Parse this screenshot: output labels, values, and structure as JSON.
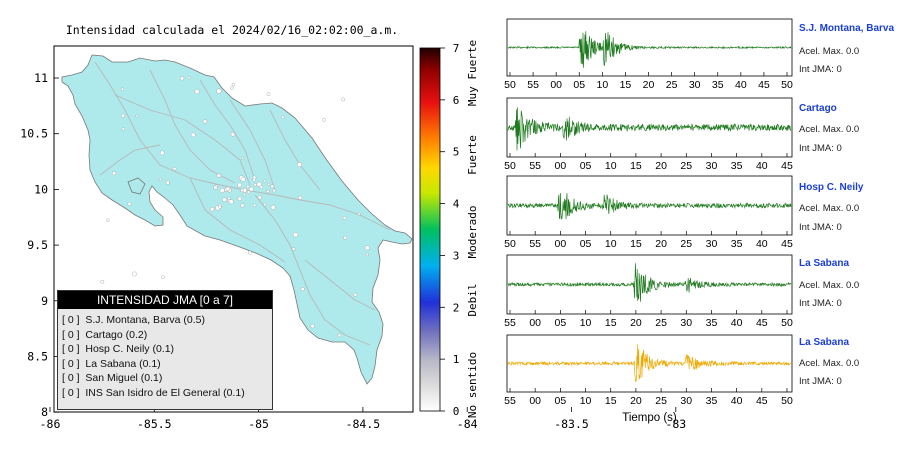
{
  "title": "Intensidad calculada el 2024/02/16_02:02:00_a.m.",
  "map": {
    "lon_ticks": [
      "-86",
      "-85.5",
      "-85",
      "-84.5",
      "-84",
      "-83.5",
      "-83"
    ],
    "lat_ticks": [
      "11",
      "10.5",
      "10",
      "9.5",
      "9",
      "8.5",
      "8"
    ],
    "land_color": "#aee9ec",
    "road_color": "#b8b8b8",
    "legend": {
      "header": "INTENSIDAD JMA [0 a 7]",
      "items": [
        {
          "value": "[ 0 ]",
          "label": "S.J. Montana, Barva (0.5)"
        },
        {
          "value": "[ 0 ]",
          "label": "Cartago (0.2)"
        },
        {
          "value": "[ 0 ]",
          "label": "Hosp C. Neily (0.1)"
        },
        {
          "value": "[ 0 ]",
          "label": "La Sabana (0.1)"
        },
        {
          "value": "[ 0 ]",
          "label": "San Miguel (0.1)"
        },
        {
          "value": "[ 0 ]",
          "label": "INS San Isidro de El General (0.1)"
        }
      ]
    }
  },
  "colorbar": {
    "ticks": [
      "0",
      "1",
      "2",
      "3",
      "4",
      "5",
      "6",
      "7"
    ],
    "categories": [
      "No sentido",
      "Debil",
      "Moderado",
      "Fuerte",
      "Muy Fuerte"
    ]
  },
  "chart_data": [
    {
      "type": "line",
      "name": "S.J. Montana, Barva",
      "color": "#1f7a1f",
      "x_ticks": [
        "50",
        "55",
        "00",
        "05",
        "10",
        "15",
        "20",
        "25",
        "30",
        "35",
        "40",
        "45",
        "50"
      ],
      "bursts": [
        {
          "t": 15.5,
          "amp": 1.0
        },
        {
          "t": 20.5,
          "amp": 0.7
        }
      ],
      "noise": 0.03
    },
    {
      "type": "line",
      "name": "Cartago",
      "color": "#1f7a1f",
      "x_ticks": [
        "50",
        "55",
        "00",
        "05",
        "10",
        "15",
        "20",
        "25",
        "30",
        "35",
        "40",
        "45"
      ],
      "bursts": [
        {
          "t": 2.0,
          "amp": 0.9
        },
        {
          "t": 12.0,
          "amp": 0.5
        }
      ],
      "noise": 0.12
    },
    {
      "type": "line",
      "name": "Hosp C. Neily",
      "color": "#1f7a1f",
      "x_ticks": [
        "50",
        "55",
        "00",
        "05",
        "10",
        "15",
        "20",
        "25",
        "30",
        "35",
        "40",
        "45"
      ],
      "bursts": [
        {
          "t": 11.0,
          "amp": 0.8
        },
        {
          "t": 20.5,
          "amp": 0.4
        }
      ],
      "noise": 0.08
    },
    {
      "type": "line",
      "name": "La Sabana",
      "color": "#1f7a1f",
      "x_ticks": [
        "55",
        "00",
        "05",
        "10",
        "15",
        "20",
        "25",
        "30",
        "35",
        "40",
        "45",
        "50"
      ],
      "bursts": [
        {
          "t": 27.0,
          "amp": 1.0
        },
        {
          "t": 38.0,
          "amp": 0.3
        }
      ],
      "noise": 0.06
    },
    {
      "type": "line",
      "name": "La Sabana",
      "color": "#f0a800",
      "x_ticks": [
        "55",
        "00",
        "05",
        "10",
        "15",
        "20",
        "25",
        "30",
        "35",
        "40",
        "45",
        "50"
      ],
      "bursts": [
        {
          "t": 27.0,
          "amp": 1.0
        },
        {
          "t": 38.0,
          "amp": 0.4
        }
      ],
      "noise": 0.06,
      "xlabel": "Tiempo (s)"
    }
  ],
  "stations": [
    {
      "name": "S.J. Montana, Barva",
      "acel": "Acel. Max. 0.0",
      "int": "Int JMA: 0"
    },
    {
      "name": "Cartago",
      "acel": "Acel. Max. 0.0",
      "int": "Int JMA: 0"
    },
    {
      "name": "Hosp C. Neily",
      "acel": "Acel. Max. 0.0",
      "int": "Int JMA: 0"
    },
    {
      "name": "La Sabana",
      "acel": "Acel. Max. 0.0",
      "int": "Int JMA: 0"
    },
    {
      "name": "La Sabana",
      "acel": "Acel. Max. 0.0",
      "int": "Int JMA: 0"
    }
  ]
}
